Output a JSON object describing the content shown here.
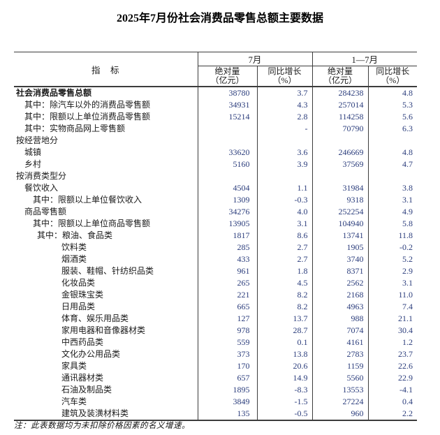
{
  "title": "2025年7月份社会消费品零售总额主要数据",
  "note": "注：此表数据均为未扣除价格因素的名义增速。",
  "colors": {
    "number_text": "#2b3d7c",
    "label_text": "#1a1a1a",
    "border": "#3c3c3c",
    "background": "#ffffff"
  },
  "table": {
    "indicator_header": "指　标",
    "group_headers": [
      {
        "label": "7月"
      },
      {
        "label": "1—7月"
      }
    ],
    "sub_headers": [
      {
        "line1": "绝对量",
        "line2": "（亿元）"
      },
      {
        "line1": "同比增长",
        "line2": "（%）"
      },
      {
        "line1": "绝对量",
        "line2": "（亿元）"
      },
      {
        "line1": "同比增长",
        "line2": "（%）"
      }
    ],
    "rows": [
      {
        "label": "社会消费品零售总额",
        "indent": 0,
        "bold": true,
        "values": [
          "38780",
          "3.7",
          "284238",
          "4.8"
        ]
      },
      {
        "label": "其中：除汽车以外的消费品零售额",
        "indent": 1,
        "bold": false,
        "values": [
          "34931",
          "4.3",
          "257014",
          "5.3"
        ]
      },
      {
        "label": "其中：限额以上单位消费品零售额",
        "indent": 1,
        "bold": false,
        "values": [
          "15214",
          "2.8",
          "114258",
          "5.6"
        ]
      },
      {
        "label": "其中：实物商品网上零售额",
        "indent": 1,
        "bold": false,
        "values": [
          "",
          "-",
          "70790",
          "6.3"
        ]
      },
      {
        "label": "按经营地分",
        "indent": 0,
        "bold": false,
        "values": [
          "",
          "",
          "",
          ""
        ]
      },
      {
        "label": "城镇",
        "indent": 1,
        "bold": false,
        "values": [
          "33620",
          "3.6",
          "246669",
          "4.8"
        ]
      },
      {
        "label": "乡村",
        "indent": 1,
        "bold": false,
        "values": [
          "5160",
          "3.9",
          "37569",
          "4.7"
        ]
      },
      {
        "label": "按消费类型分",
        "indent": 0,
        "bold": false,
        "values": [
          "",
          "",
          "",
          ""
        ]
      },
      {
        "label": "餐饮收入",
        "indent": 1,
        "bold": false,
        "values": [
          "4504",
          "1.1",
          "31984",
          "3.8"
        ]
      },
      {
        "label": "其中：限额以上单位餐饮收入",
        "indent": 2,
        "bold": false,
        "values": [
          "1309",
          "-0.3",
          "9318",
          "3.1"
        ]
      },
      {
        "label": "商品零售额",
        "indent": 1,
        "bold": false,
        "values": [
          "34276",
          "4.0",
          "252254",
          "4.9"
        ]
      },
      {
        "label": "其中：限额以上单位商品零售额",
        "indent": 2,
        "bold": false,
        "values": [
          "13905",
          "3.1",
          "104940",
          "5.8"
        ]
      },
      {
        "label": "其中：粮油、食品类",
        "indent": 3,
        "bold": false,
        "values": [
          "1817",
          "8.6",
          "13741",
          "11.8"
        ]
      },
      {
        "label": "饮料类",
        "indent": 4,
        "bold": false,
        "values": [
          "285",
          "2.7",
          "1905",
          "-0.2"
        ]
      },
      {
        "label": "烟酒类",
        "indent": 4,
        "bold": false,
        "values": [
          "433",
          "2.7",
          "3740",
          "5.2"
        ]
      },
      {
        "label": "服装、鞋帽、针纺织品类",
        "indent": 4,
        "bold": false,
        "values": [
          "961",
          "1.8",
          "8371",
          "2.9"
        ]
      },
      {
        "label": "化妆品类",
        "indent": 4,
        "bold": false,
        "values": [
          "265",
          "4.5",
          "2562",
          "3.1"
        ]
      },
      {
        "label": "金银珠宝类",
        "indent": 4,
        "bold": false,
        "values": [
          "221",
          "8.2",
          "2168",
          "11.0"
        ]
      },
      {
        "label": "日用品类",
        "indent": 4,
        "bold": false,
        "values": [
          "665",
          "8.2",
          "4963",
          "7.4"
        ]
      },
      {
        "label": "体育、娱乐用品类",
        "indent": 4,
        "bold": false,
        "values": [
          "127",
          "13.7",
          "988",
          "21.1"
        ]
      },
      {
        "label": "家用电器和音像器材类",
        "indent": 4,
        "bold": false,
        "values": [
          "978",
          "28.7",
          "7074",
          "30.4"
        ]
      },
      {
        "label": "中西药品类",
        "indent": 4,
        "bold": false,
        "values": [
          "559",
          "0.1",
          "4161",
          "1.2"
        ]
      },
      {
        "label": "文化办公用品类",
        "indent": 4,
        "bold": false,
        "values": [
          "373",
          "13.8",
          "2783",
          "23.7"
        ]
      },
      {
        "label": "家具类",
        "indent": 4,
        "bold": false,
        "values": [
          "170",
          "20.6",
          "1159",
          "22.6"
        ]
      },
      {
        "label": "通讯器材类",
        "indent": 4,
        "bold": false,
        "values": [
          "657",
          "14.9",
          "5560",
          "22.9"
        ]
      },
      {
        "label": "石油及制品类",
        "indent": 4,
        "bold": false,
        "values": [
          "1895",
          "-8.3",
          "13553",
          "-4.1"
        ]
      },
      {
        "label": "汽车类",
        "indent": 4,
        "bold": false,
        "values": [
          "3849",
          "-1.5",
          "27224",
          "0.4"
        ]
      },
      {
        "label": "建筑及装潢材料类",
        "indent": 4,
        "bold": false,
        "values": [
          "135",
          "-0.5",
          "960",
          "2.2"
        ]
      }
    ]
  }
}
